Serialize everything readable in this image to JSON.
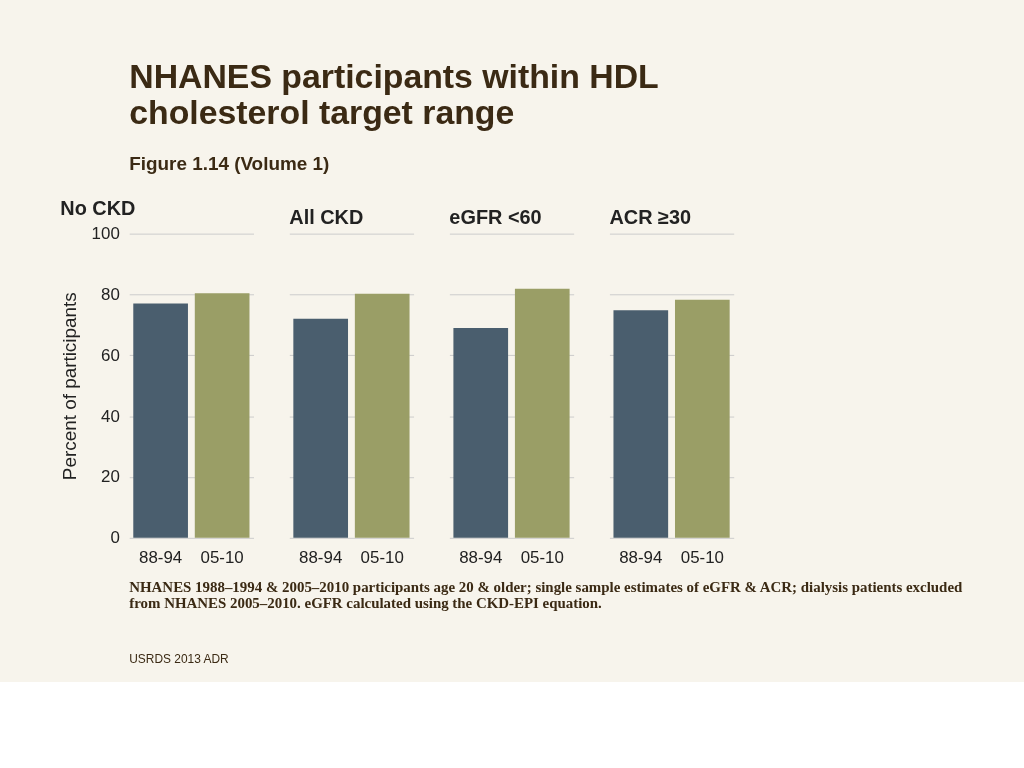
{
  "chart_data": [
    {
      "type": "bar",
      "title": "No CKD",
      "ylabel": "Percent of participants",
      "categories": [
        "88-94",
        "05-10"
      ],
      "values": [
        77.0,
        80.4
      ],
      "colors": [
        "#4a5e6e",
        "#9a9e66"
      ],
      "ylim": [
        0,
        100
      ],
      "yticks": [
        0,
        20,
        40,
        60,
        80,
        100
      ],
      "grid": "y",
      "annotations": [
        "NHANES participants within HDL cholesterol target range",
        "Figure 1.14 (Volume 1)",
        "NHANES 1988–1994 & 2005–2010 participants age 20 & older; single sample estimates of eGFR & ACR; dialysis patients excluded from NHANES 2005–2010. eGFR calculated using the CKD-EPI equation.",
        "USRDS 2013 ADR"
      ]
    },
    {
      "type": "bar",
      "title": "All CKD",
      "categories": [
        "88-94",
        "05-10"
      ],
      "values": [
        72.0,
        80.2
      ],
      "colors": [
        "#4a5e6e",
        "#9a9e66"
      ],
      "ylim": [
        0,
        100
      ],
      "yticks": [
        0,
        20,
        40,
        60,
        80,
        100
      ],
      "grid": "y",
      "tick_labels": "x"
    },
    {
      "type": "bar",
      "title": "eGFR <60",
      "categories": [
        "88-94",
        "05-10"
      ],
      "values": [
        69.0,
        81.9
      ],
      "colors": [
        "#4a5e6e",
        "#9a9e66"
      ],
      "ylim": [
        0,
        100
      ],
      "yticks": [
        0,
        20,
        40,
        60,
        80,
        100
      ],
      "grid": "y",
      "tick_labels": "x"
    },
    {
      "type": "bar",
      "title": "ACR ≥30",
      "categories": [
        "88-94",
        "05-10"
      ],
      "values": [
        74.8,
        78.3
      ],
      "colors": [
        "#4a5e6e",
        "#9a9e66"
      ],
      "ylim": [
        0,
        100
      ],
      "yticks": [
        0,
        20,
        40,
        60,
        80,
        100
      ],
      "grid": "y",
      "tick_labels": "x"
    }
  ]
}
